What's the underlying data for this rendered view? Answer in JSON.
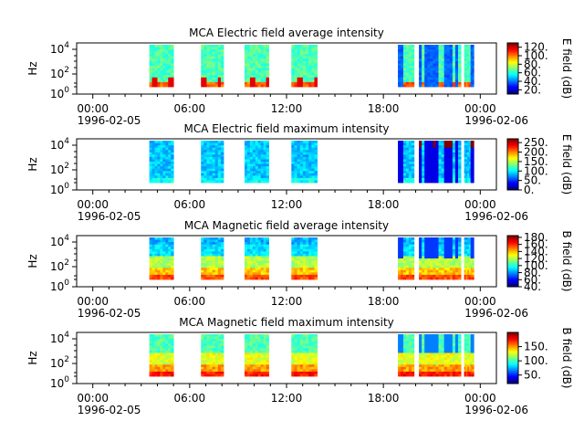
{
  "figure": {
    "background": "#ffffff"
  },
  "chart_data": [
    {
      "type": "heatmap",
      "title": "MCA  Electric field average intensity",
      "ylabel": "Hz",
      "colorbar_label": "E field (dB)",
      "colorbar_ticks": [
        "20.",
        "40.",
        "60.",
        "80.",
        "100.",
        "120."
      ],
      "colorbar_range": [
        10,
        130
      ],
      "y_log": true,
      "y_ticks": [
        {
          "base": "10",
          "exp": "0"
        },
        {
          "base": "10",
          "exp": "2"
        },
        {
          "base": "10",
          "exp": "4"
        }
      ],
      "x_ticks": [
        "00:00",
        "06:00",
        "12:00",
        "18:00",
        "00:00"
      ],
      "x_dates": {
        "start": "1996-02-05",
        "end": "1996-02-06"
      },
      "time_range_hours": [
        -1,
        25
      ],
      "segments_hours": [
        [
          3.5,
          5.0
        ],
        [
          6.7,
          8.1
        ],
        [
          9.4,
          10.9
        ],
        [
          12.3,
          13.9
        ],
        [
          18.9,
          19.9
        ],
        [
          20.2,
          22.8
        ],
        [
          23.0,
          23.6
        ]
      ],
      "level_profile": "e_avg"
    },
    {
      "type": "heatmap",
      "title": "MCA  Electric field maximum intensity",
      "ylabel": "Hz",
      "colorbar_label": "E field (dB)",
      "colorbar_ticks": [
        "0.",
        "50.",
        "100.",
        "150.",
        "200.",
        "250."
      ],
      "colorbar_range": [
        0,
        270
      ],
      "y_log": true,
      "y_ticks": [
        {
          "base": "10",
          "exp": "0"
        },
        {
          "base": "10",
          "exp": "2"
        },
        {
          "base": "10",
          "exp": "4"
        }
      ],
      "x_ticks": [
        "00:00",
        "06:00",
        "12:00",
        "18:00",
        "00:00"
      ],
      "x_dates": {
        "start": "1996-02-05",
        "end": "1996-02-06"
      },
      "time_range_hours": [
        -1,
        25
      ],
      "segments_hours": [
        [
          3.5,
          5.0
        ],
        [
          6.7,
          8.1
        ],
        [
          9.4,
          10.9
        ],
        [
          12.3,
          13.9
        ],
        [
          18.9,
          19.9
        ],
        [
          20.2,
          22.8
        ],
        [
          23.0,
          23.6
        ]
      ],
      "level_profile": "e_max"
    },
    {
      "type": "heatmap",
      "title": "MCA  Magnetic field average intensity",
      "ylabel": "Hz",
      "colorbar_label": "B field (dB)",
      "colorbar_ticks": [
        "40.",
        "60.",
        "80.",
        "100.",
        "120.",
        "140.",
        "160.",
        "180."
      ],
      "colorbar_range": [
        40,
        185
      ],
      "y_log": true,
      "y_ticks": [
        {
          "base": "10",
          "exp": "0"
        },
        {
          "base": "10",
          "exp": "2"
        },
        {
          "base": "10",
          "exp": "4"
        }
      ],
      "x_ticks": [
        "00:00",
        "06:00",
        "12:00",
        "18:00",
        "00:00"
      ],
      "x_dates": {
        "start": "1996-02-05",
        "end": "1996-02-06"
      },
      "time_range_hours": [
        -1,
        25
      ],
      "segments_hours": [
        [
          3.5,
          5.0
        ],
        [
          6.7,
          8.1
        ],
        [
          9.4,
          10.9
        ],
        [
          12.3,
          13.9
        ],
        [
          18.9,
          19.9
        ],
        [
          20.2,
          22.8
        ],
        [
          23.0,
          23.6
        ]
      ],
      "level_profile": "b_avg"
    },
    {
      "type": "heatmap",
      "title": "MCA  Magnetic field maximum intensity",
      "ylabel": "Hz",
      "colorbar_label": "B field (dB)",
      "colorbar_ticks": [
        "50.",
        "100.",
        "150."
      ],
      "colorbar_range": [
        20,
        200
      ],
      "y_log": true,
      "y_ticks": [
        {
          "base": "10",
          "exp": "0"
        },
        {
          "base": "10",
          "exp": "2"
        },
        {
          "base": "10",
          "exp": "4"
        }
      ],
      "x_ticks": [
        "00:00",
        "06:00",
        "12:00",
        "18:00",
        "00:00"
      ],
      "x_dates": {
        "start": "1996-02-05",
        "end": "1996-02-06"
      },
      "time_range_hours": [
        -1,
        25
      ],
      "segments_hours": [
        [
          3.5,
          5.0
        ],
        [
          6.7,
          8.1
        ],
        [
          9.4,
          10.9
        ],
        [
          12.3,
          13.9
        ],
        [
          18.9,
          19.9
        ],
        [
          20.2,
          22.8
        ],
        [
          23.0,
          23.6
        ]
      ],
      "level_profile": "b_max"
    }
  ]
}
